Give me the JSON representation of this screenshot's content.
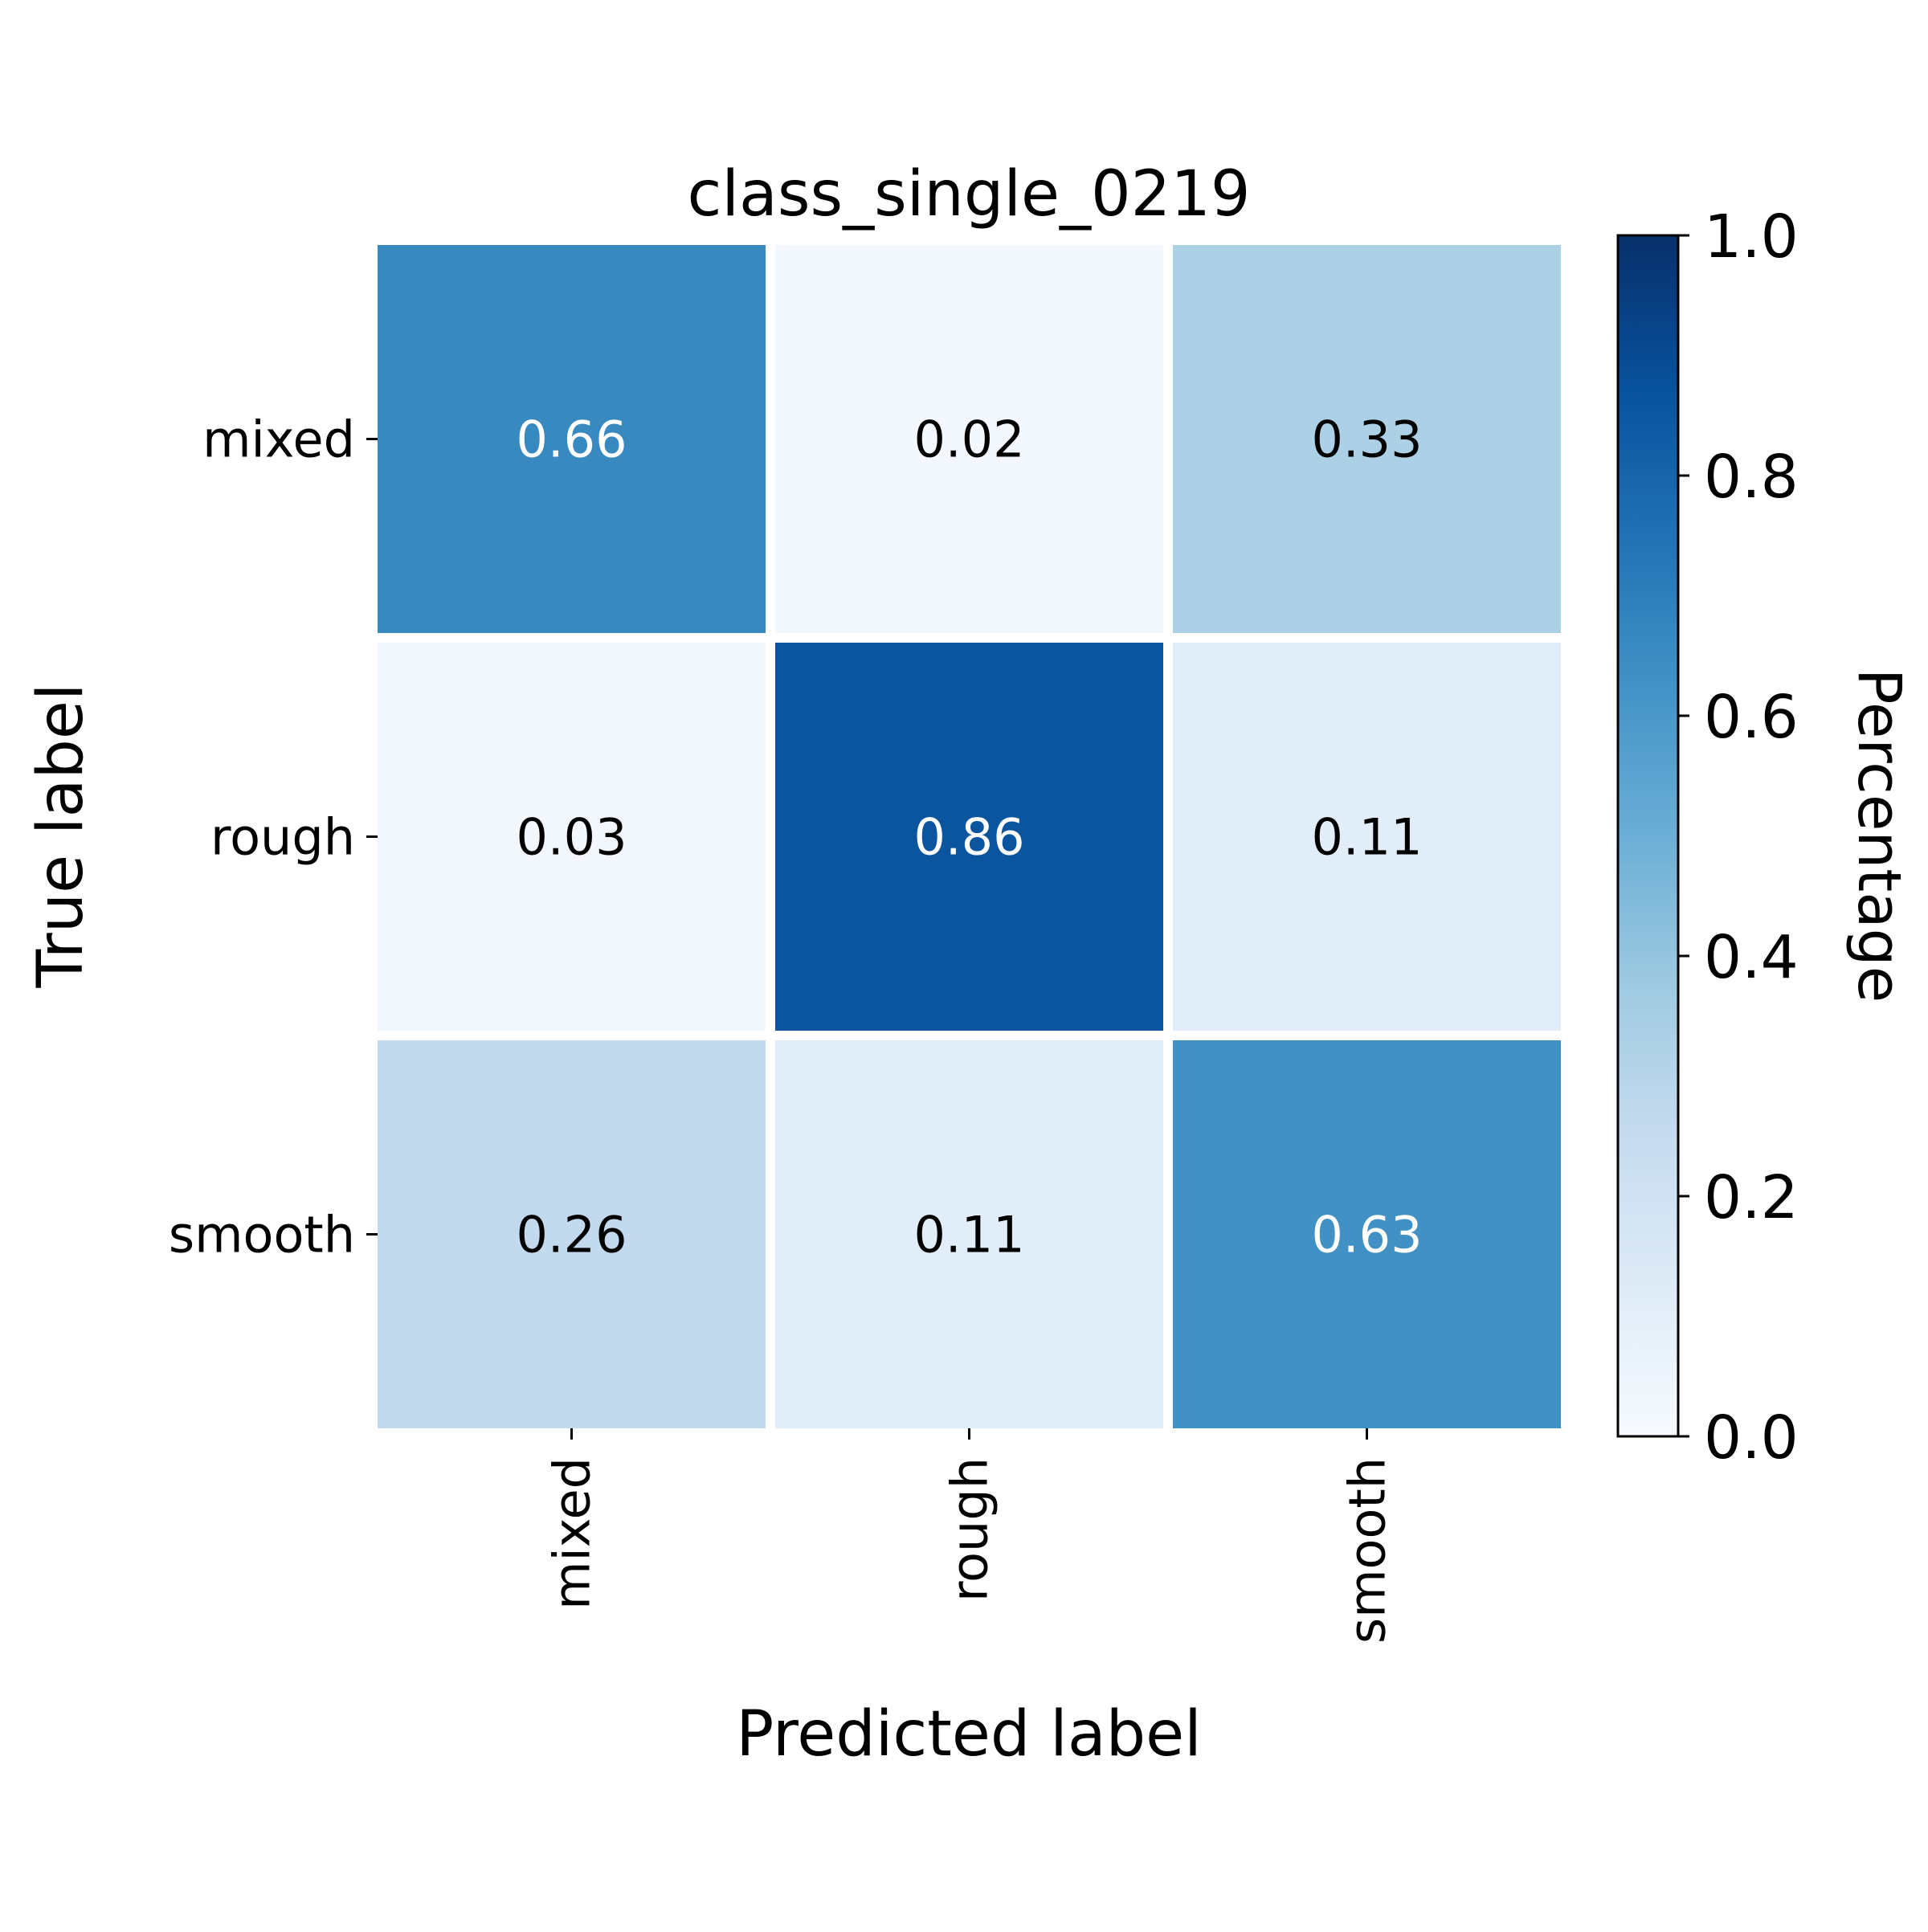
{
  "chart_data": {
    "type": "heatmap",
    "title": "class_single_0219",
    "xlabel": "Predicted label",
    "ylabel": "True label",
    "x_categories": [
      "mixed",
      "rough",
      "smooth"
    ],
    "y_categories": [
      "mixed",
      "rough",
      "smooth"
    ],
    "values": [
      [
        0.66,
        0.02,
        0.33
      ],
      [
        0.03,
        0.86,
        0.11
      ],
      [
        0.26,
        0.11,
        0.63
      ]
    ],
    "value_format": "0.00",
    "colormap": "Blues",
    "colorbar": {
      "label": "Percentage",
      "range": [
        0.0,
        1.0
      ],
      "ticks": [
        0.0,
        0.2,
        0.4,
        0.6,
        0.8,
        1.0
      ],
      "tick_labels": [
        "0.0",
        "0.2",
        "0.4",
        "0.6",
        "0.8",
        "1.0"
      ]
    },
    "cell_separator_color": "#ffffff",
    "annotation_colors": {
      "light": "#ffffff",
      "dark": "#000000"
    }
  }
}
